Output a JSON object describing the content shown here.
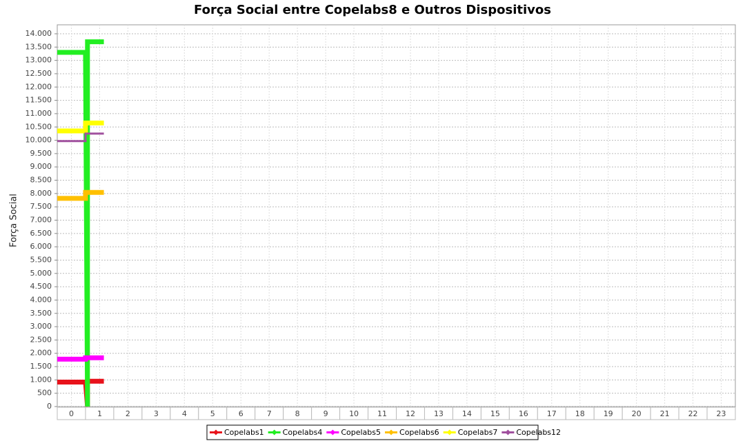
{
  "chart_data": {
    "type": "line",
    "title": "Força Social entre Copelabs8 e Outros Dispositivos",
    "y_label": "Força Social",
    "categories": [
      "0",
      "1",
      "2",
      "3",
      "4",
      "5",
      "6",
      "7",
      "8",
      "9",
      "10",
      "11",
      "12",
      "13",
      "14",
      "15",
      "16",
      "17",
      "18",
      "19",
      "20",
      "21",
      "22",
      "23"
    ],
    "xlim": [
      -0.5,
      23.5
    ],
    "ylim": [
      0,
      14000
    ],
    "yticks": [
      0,
      500,
      {
        "value": 1000,
        "label": "1.000"
      },
      {
        "value": 1500,
        "label": "1.500"
      },
      {
        "value": 2000,
        "label": "2.000"
      },
      {
        "value": 2500,
        "label": "2.500"
      },
      {
        "value": 3000,
        "label": "3.000"
      },
      {
        "value": 3500,
        "label": "3.500"
      },
      {
        "value": 4000,
        "label": "4.000"
      },
      {
        "value": 4500,
        "label": "4.500"
      },
      {
        "value": 5000,
        "label": "5.000"
      },
      {
        "value": 5500,
        "label": "5.500"
      },
      {
        "value": 6000,
        "label": "6.000"
      },
      {
        "value": 6500,
        "label": "6.500"
      },
      {
        "value": 7000,
        "label": "7.000"
      },
      {
        "value": 7500,
        "label": "7.500"
      },
      {
        "value": 8000,
        "label": "8.000"
      },
      {
        "value": 8500,
        "label": "8.500"
      },
      {
        "value": 9000,
        "label": "9.000"
      },
      {
        "value": 9500,
        "label": "9.500"
      },
      {
        "value": 10000,
        "label": "10.000"
      },
      {
        "value": 10500,
        "label": "10.500"
      },
      {
        "value": 11000,
        "label": "11.000"
      },
      {
        "value": 11500,
        "label": "11.500"
      },
      {
        "value": 12000,
        "label": "12.000"
      },
      {
        "value": 12500,
        "label": "12.500"
      },
      {
        "value": 13000,
        "label": "13.000"
      },
      {
        "value": 13500,
        "label": "13.500"
      },
      {
        "value": 14000,
        "label": "14.000"
      }
    ],
    "grid": true,
    "legend": "bottom",
    "series": [
      {
        "name": "Copelabs1",
        "color": "#e8121b",
        "x": [
          -0.5,
          0.5,
          0.57,
          0.57,
          1.15
        ],
        "values": [
          920,
          920,
          0,
          950,
          950
        ]
      },
      {
        "name": "Copelabs4",
        "color": "#22ee22",
        "x": [
          -0.5,
          0.5,
          0.57,
          0.57,
          1.15
        ],
        "values": [
          13300,
          13300,
          0,
          13700,
          13700
        ]
      },
      {
        "name": "Copelabs5",
        "color": "#ff00ff",
        "x": [
          -0.5,
          0.5,
          0.5,
          1.15
        ],
        "values": [
          1780,
          1780,
          1830,
          1830
        ]
      },
      {
        "name": "Copelabs6",
        "color": "#ffc000",
        "x": [
          -0.5,
          0.5,
          0.5,
          1.15
        ],
        "values": [
          7820,
          7820,
          8040,
          8040
        ]
      },
      {
        "name": "Copelabs7",
        "color": "#ffff00",
        "x": [
          -0.5,
          0.5,
          0.5,
          1.15
        ],
        "values": [
          10350,
          10350,
          10650,
          10650
        ]
      },
      {
        "name": "Copelabs12",
        "color": "#a0509e",
        "x": [
          -0.5,
          0.5,
          0.5,
          1.15
        ],
        "values": [
          9970,
          9970,
          10250,
          10250
        ]
      }
    ]
  }
}
